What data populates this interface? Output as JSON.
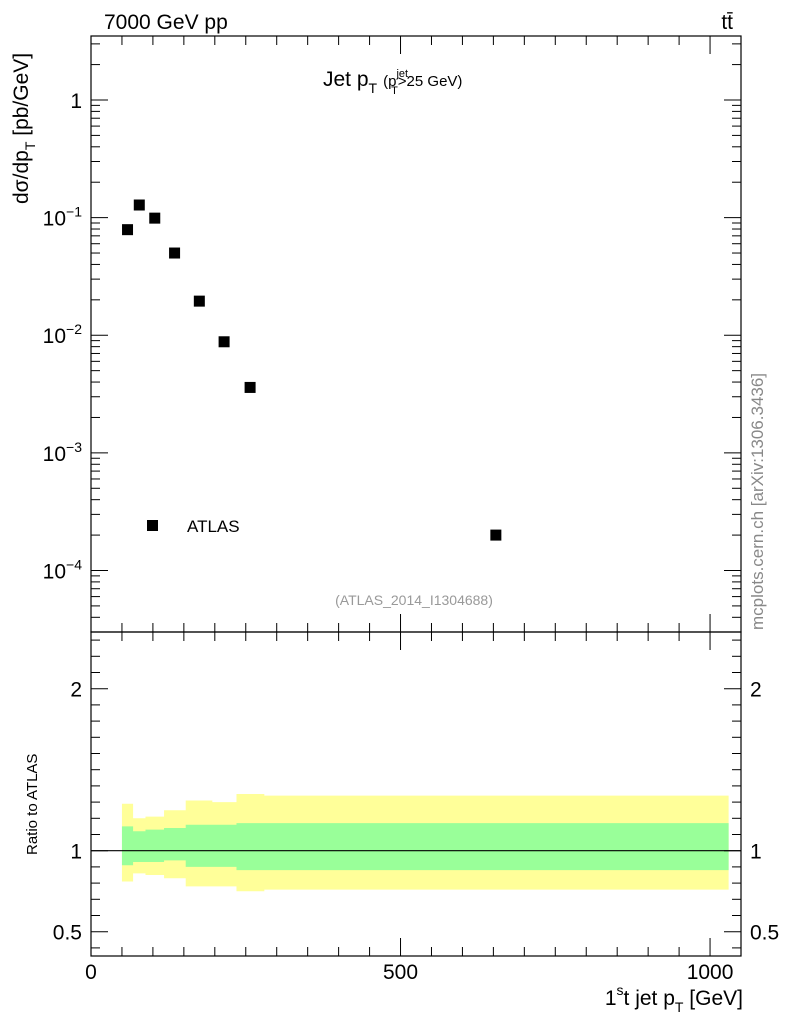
{
  "header": {
    "energy": "7000 GeV pp",
    "process": "tt̄"
  },
  "watermark": "mcplots.cern.ch [arXiv:1306.3436]",
  "analysis_id": "(ATLAS_2014_I1304688)",
  "chart_data": [
    {
      "type": "scatter",
      "title_main": "Jet p",
      "title_sub": "T",
      "title_cut_open": "(p",
      "title_cut_sup": "jet",
      "title_cut_sub": "T",
      "title_cut_close": ">25 GeV)",
      "ylabel": "dσ/dp",
      "ylabel_sub": "T",
      "ylabel_unit": " [pb/GeV]",
      "yscale": "log",
      "ylim": [
        3e-05,
        3.5
      ],
      "xlim": [
        0,
        1050
      ],
      "y_ticks": [
        {
          "value": 1,
          "label": "1"
        },
        {
          "value": 0.1,
          "label": "10",
          "exp": "−1"
        },
        {
          "value": 0.01,
          "label": "10",
          "exp": "−2"
        },
        {
          "value": 0.001,
          "label": "10",
          "exp": "−3"
        },
        {
          "value": 0.0001,
          "label": "10",
          "exp": "−4"
        }
      ],
      "legend": {
        "label": "ATLAS",
        "position": "bottom-left"
      },
      "series": [
        {
          "name": "ATLAS",
          "color": "#000000",
          "x": [
            59,
            78,
            103,
            135,
            175,
            215,
            257,
            654
          ],
          "y": [
            0.079,
            0.128,
            0.099,
            0.05,
            0.0195,
            0.0088,
            0.0036,
            0.0002
          ]
        }
      ]
    },
    {
      "type": "area",
      "ylabel": "Ratio to ATLAS",
      "ylim": [
        0.35,
        2.35
      ],
      "xlim": [
        0,
        1050
      ],
      "xlabel_main": "1",
      "xlabel_sup": "s",
      "xlabel_rest": "t jet p",
      "xlabel_sub": "T",
      "xlabel_unit": " [GeV]",
      "x_ticks": [
        {
          "value": 0,
          "label": "0"
        },
        {
          "value": 500,
          "label": "500"
        },
        {
          "value": 1000,
          "label": "1000"
        }
      ],
      "y_ticks": [
        {
          "value": 0.5,
          "label": "0.5"
        },
        {
          "value": 1,
          "label": "1"
        },
        {
          "value": 2,
          "label": "2"
        }
      ],
      "reference_line": 1,
      "bin_edges": [
        50,
        68,
        88,
        118,
        153,
        196,
        235,
        280,
        1030
      ],
      "inner_band": {
        "color": "#99ff99",
        "lo": [
          0.91,
          0.93,
          0.93,
          0.94,
          0.9,
          0.9,
          0.88,
          0.88
        ],
        "hi": [
          1.15,
          1.12,
          1.13,
          1.14,
          1.16,
          1.16,
          1.17,
          1.17
        ]
      },
      "outer_band": {
        "color": "#ffff99",
        "lo": [
          0.81,
          0.86,
          0.85,
          0.83,
          0.78,
          0.78,
          0.75,
          0.76
        ],
        "hi": [
          1.29,
          1.2,
          1.21,
          1.25,
          1.31,
          1.3,
          1.35,
          1.34
        ]
      }
    }
  ]
}
